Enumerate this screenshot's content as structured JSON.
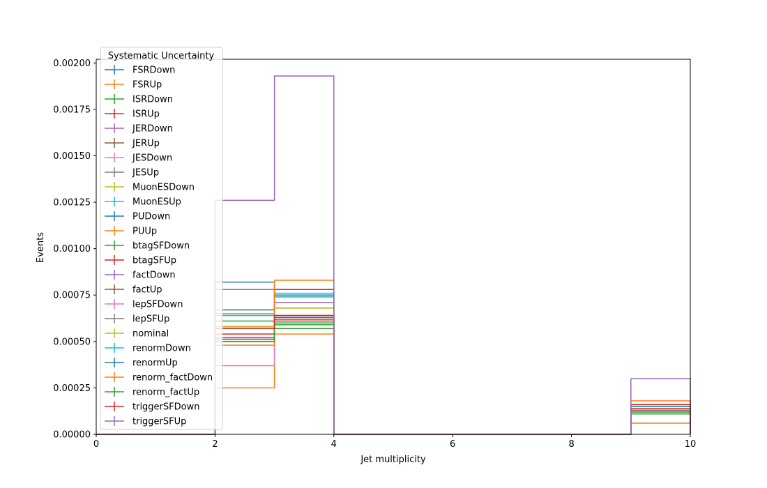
{
  "chart_data": {
    "type": "step",
    "title": "",
    "xlabel": "Jet multiplicity",
    "ylabel": "Events",
    "xlim": [
      0,
      10
    ],
    "ylim": [
      0,
      0.00202
    ],
    "x_ticks": [
      0,
      2,
      4,
      6,
      8,
      10
    ],
    "x_tick_labels": [
      "0",
      "2",
      "4",
      "6",
      "8",
      "10"
    ],
    "y_ticks": [
      0,
      0.00025,
      0.0005,
      0.00075,
      0.001,
      0.00125,
      0.0015,
      0.00175,
      0.002
    ],
    "y_tick_labels": [
      "0.00000",
      "0.00025",
      "0.00050",
      "0.00075",
      "0.00100",
      "0.00125",
      "0.00150",
      "0.00175",
      "0.00200"
    ],
    "bin_edges": [
      0,
      2,
      3,
      4,
      9,
      10
    ],
    "grid": false,
    "legend": {
      "title": "Systematic Uncertainty",
      "placement": "top-left"
    },
    "series": [
      {
        "name": "FSRDown",
        "color": "#1f77b4",
        "values": [
          0,
          0.00082,
          0.00063,
          0,
          0.00015
        ]
      },
      {
        "name": "FSRUp",
        "color": "#ff7f0e",
        "values": [
          0,
          0.00025,
          0.00054,
          0,
          6e-05
        ]
      },
      {
        "name": "ISRDown",
        "color": "#2ca02c",
        "values": [
          0,
          0.0005,
          0.0006,
          0,
          0.00013
        ]
      },
      {
        "name": "ISRUp",
        "color": "#d62728",
        "values": [
          0,
          0.00054,
          0.00061,
          0,
          0.00013
        ]
      },
      {
        "name": "JERDown",
        "color": "#9467bd",
        "values": [
          0,
          0.00058,
          0.00062,
          0,
          0.00014
        ]
      },
      {
        "name": "JERUp",
        "color": "#8c564b",
        "values": [
          0,
          0.00057,
          0.00063,
          0,
          0.00013
        ]
      },
      {
        "name": "JESDown",
        "color": "#e377c2",
        "values": [
          0,
          0.00037,
          0.00063,
          0,
          0.00014
        ]
      },
      {
        "name": "JESUp",
        "color": "#7f7f7f",
        "values": [
          0,
          0.00078,
          0.00074,
          0,
          0.00015
        ]
      },
      {
        "name": "MuonESDown",
        "color": "#bcbd22",
        "values": [
          0,
          0.00057,
          0.00068,
          0,
          0.00014
        ]
      },
      {
        "name": "MuonESUp",
        "color": "#17becf",
        "values": [
          0,
          0.00064,
          0.00076,
          0,
          0.00016
        ]
      },
      {
        "name": "PUDown",
        "color": "#1f77b4",
        "values": [
          0,
          0.00067,
          0.00075,
          0,
          0.00015
        ]
      },
      {
        "name": "PUUp",
        "color": "#ff7f0e",
        "values": [
          0,
          0.00048,
          0.00064,
          0,
          0.00014
        ]
      },
      {
        "name": "btagSFDown",
        "color": "#2ca02c",
        "values": [
          0,
          0.00061,
          0.00057,
          0,
          0.00011
        ]
      },
      {
        "name": "btagSFUp",
        "color": "#d62728",
        "values": [
          0,
          0.00052,
          0.00078,
          0,
          0.00016
        ]
      },
      {
        "name": "factDown",
        "color": "#9467bd",
        "values": [
          0,
          0.00058,
          0.00071,
          0,
          0.00015
        ]
      },
      {
        "name": "factUp",
        "color": "#8c564b",
        "values": [
          0,
          0.00058,
          0.00062,
          0,
          0.00013
        ]
      },
      {
        "name": "lepSFDown",
        "color": "#e377c2",
        "values": [
          0,
          0.00058,
          0.00063,
          0,
          0.00014
        ]
      },
      {
        "name": "lepSFUp",
        "color": "#7f7f7f",
        "values": [
          0,
          0.00057,
          0.00063,
          0,
          0.00014
        ]
      },
      {
        "name": "nominal",
        "color": "#bcbd22",
        "values": [
          0,
          0.00058,
          0.00068,
          0,
          0.00014
        ]
      },
      {
        "name": "renormDown",
        "color": "#17becf",
        "values": [
          0,
          0.00064,
          0.00074,
          0,
          0.00015
        ]
      },
      {
        "name": "renormUp",
        "color": "#1f77b4",
        "values": [
          0,
          0.00051,
          0.00063,
          0,
          0.00012
        ]
      },
      {
        "name": "renorm_factDown",
        "color": "#ff7f0e",
        "values": [
          0,
          0.00065,
          0.00083,
          0,
          0.00018
        ]
      },
      {
        "name": "renorm_factUp",
        "color": "#2ca02c",
        "values": [
          0,
          0.0005,
          0.00059,
          0,
          0.00012
        ]
      },
      {
        "name": "triggerSFDown",
        "color": "#d62728",
        "values": [
          0,
          0.00057,
          0.00064,
          0,
          0.00014
        ]
      },
      {
        "name": "triggerSFUp",
        "color": "#9467bd",
        "values": [
          0,
          0.00126,
          0.00193,
          0,
          0.0003
        ]
      }
    ]
  }
}
